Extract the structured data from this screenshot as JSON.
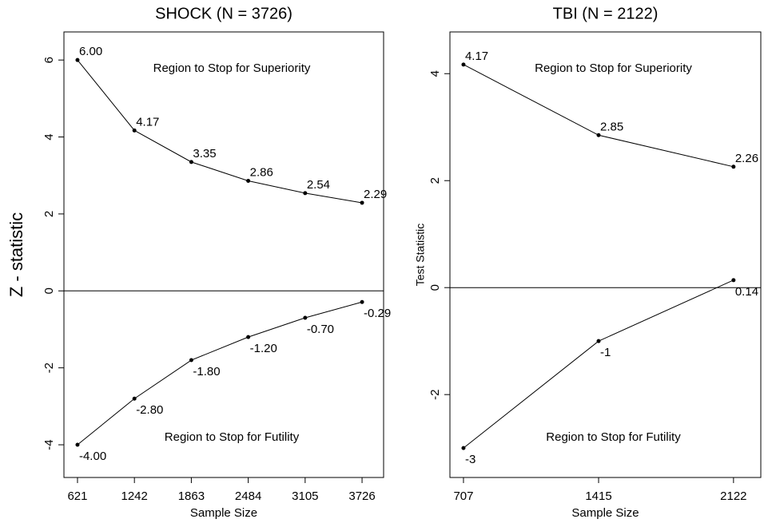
{
  "chart_data": [
    {
      "type": "line",
      "title": "SHOCK (N = 3726)",
      "x_label": "Sample Size",
      "y_label": "Z - statistic",
      "x": [
        621,
        1242,
        1863,
        2484,
        3105,
        3726
      ],
      "series": [
        {
          "color": "#000000",
          "values": [
            6.0,
            4.17,
            3.35,
            2.86,
            2.54,
            2.29
          ],
          "value_labels": [
            "6.00",
            "4.17",
            "3.35",
            "2.86",
            "2.54",
            "2.29"
          ]
        },
        {
          "color": "#000000",
          "values": [
            -4.0,
            -2.8,
            -1.8,
            -1.2,
            -0.7,
            -0.29
          ],
          "value_labels": [
            "-4.00",
            "-2.80",
            "-1.80",
            "-1.20",
            "-0.70",
            "-0.29"
          ]
        }
      ],
      "annotations": [
        "Region to Stop for Superiority",
        "Region to Stop for Futility"
      ],
      "xlim": [
        473,
        3961
      ],
      "xticks": [
        621,
        1242,
        1863,
        2484,
        3105,
        3726
      ],
      "ylim": [
        -4.85,
        6.73
      ],
      "yticks": [
        -4,
        -2,
        0,
        2,
        4,
        6
      ]
    },
    {
      "type": "line",
      "title": "TBI (N = 2122)",
      "x_label": "Sample Size",
      "y_label": "Test Statistic",
      "x": [
        707,
        1415,
        2122
      ],
      "series": [
        {
          "color": "#000000",
          "values": [
            4.17,
            2.85,
            2.26
          ],
          "value_labels": [
            "4.17",
            "2.85",
            "2.26"
          ]
        },
        {
          "color": "#000000",
          "values": [
            -3,
            -1,
            0.14
          ],
          "value_labels": [
            "-3",
            "-1",
            "0.14"
          ]
        }
      ],
      "annotations": [
        "Region to Stop for Superiority",
        "Region to Stop for Futility"
      ],
      "xlim": [
        636,
        2265
      ],
      "xticks": [
        707,
        1415,
        2122
      ],
      "ylim": [
        -3.55,
        4.78
      ],
      "yticks": [
        -2,
        0,
        2,
        4
      ]
    }
  ]
}
